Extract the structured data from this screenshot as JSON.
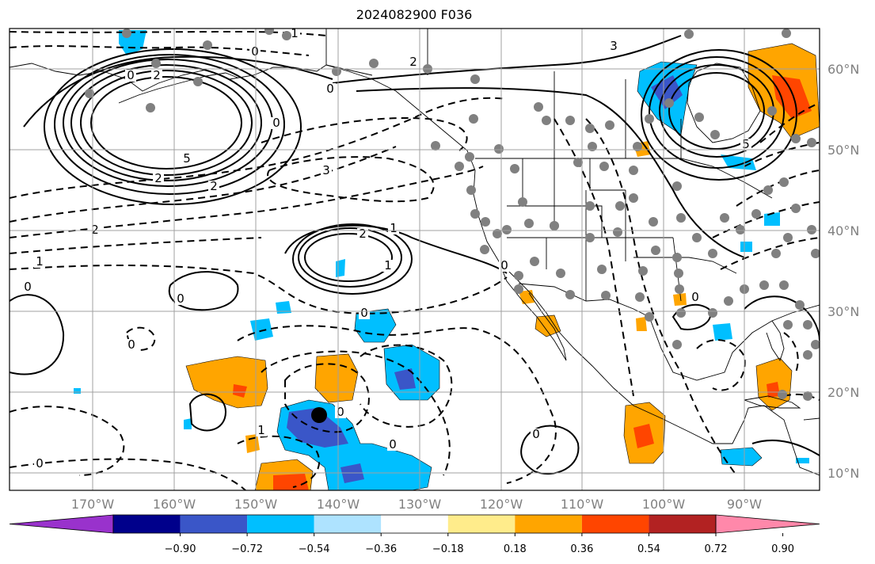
{
  "title": "2024082900 F036",
  "lat_labels": [
    "60°N",
    "50°N",
    "40°N",
    "30°N",
    "20°N",
    "10°N"
  ],
  "lon_labels": [
    "170°W",
    "160°W",
    "150°W",
    "140°W",
    "130°W",
    "120°W",
    "110°W",
    "100°W",
    "90°W"
  ],
  "colorbar": {
    "colors": [
      "#9932cc",
      "#00008b",
      "#3a56c8",
      "#00bfff",
      "#aee3ff",
      "#ffffff",
      "#ffec8b",
      "#ffa500",
      "#ff4500",
      "#b22222",
      "#ff88aa"
    ],
    "tick_labels": [
      "−0.90",
      "−0.72",
      "−0.54",
      "−0.36",
      "−0.18",
      "0.18",
      "0.36",
      "0.54",
      "0.72",
      "0.90"
    ]
  },
  "contour_labels": [
    "0",
    "2",
    "5",
    "2",
    "1",
    "0",
    "2",
    "3",
    "0",
    "3",
    "5",
    "2",
    "2",
    "0",
    "1",
    "0",
    "0",
    "0",
    "1",
    "0",
    "0",
    "1",
    "2",
    "1",
    "0",
    "0",
    "0",
    "0",
    "0"
  ],
  "point_colors": {
    "station": "#808080",
    "storm": "#000000"
  },
  "colors": {
    "gridline": "#a0a0a0",
    "coast": "#000000"
  }
}
